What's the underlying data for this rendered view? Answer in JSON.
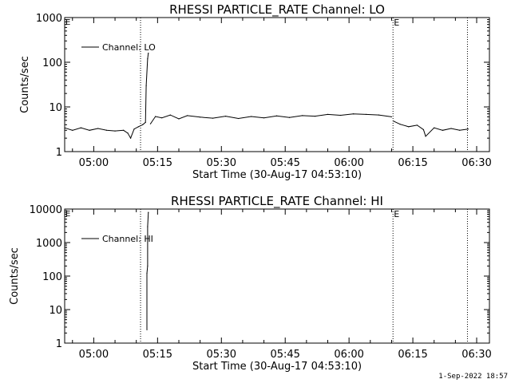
{
  "footer": {
    "timestamp": "1-Sep-2022 18:57"
  },
  "chart_data": [
    {
      "type": "line",
      "title": "RHESSI PARTICLE_RATE Channel: LO",
      "xlabel": "Start Time (30-Aug-17 04:53:10)",
      "ylabel": "Counts/sec",
      "yscale": "log",
      "ylim": [
        1,
        1000
      ],
      "xlim": [
        "04:53:10",
        "06:33:00"
      ],
      "x_ticks": [
        "05:00",
        "05:15",
        "05:30",
        "05:45",
        "06:00",
        "06:15",
        "06:30"
      ],
      "y_ticks": [
        "1",
        "10",
        "100",
        "1000"
      ],
      "legend": {
        "position": "top-left",
        "entries": [
          "Channel: LO"
        ]
      },
      "markers": [
        {
          "time": "05:11:00",
          "label": ""
        },
        {
          "time": "06:10:20",
          "label": "E"
        },
        {
          "time": "06:27:50",
          "label": ""
        }
      ],
      "corner_mark": "E",
      "series": [
        {
          "name": "Channel: LO",
          "segments": [
            {
              "x": [
                "04:53:10",
                "04:55:00",
                "04:57:00",
                "04:59:00",
                "05:01:00",
                "05:03:00",
                "05:05:00",
                "05:07:00",
                "05:08:00",
                "05:08:40",
                "05:09:30",
                "05:10:30",
                "05:11:30",
                "05:12:10",
                "05:12:20",
                "05:12:40",
                "05:12:50"
              ],
              "y": [
                3.4,
                3.0,
                3.4,
                3.0,
                3.3,
                3.0,
                2.9,
                3.0,
                2.6,
                2.0,
                3.2,
                3.6,
                4.0,
                4.5,
                30,
                120,
                160
              ]
            },
            {
              "x": [
                "05:13:20",
                "05:14:30",
                "05:16:00",
                "05:18:00",
                "05:20:00",
                "05:22:00",
                "05:25:00",
                "05:28:00",
                "05:31:00",
                "05:34:00",
                "05:37:00",
                "05:40:00",
                "05:43:00",
                "05:46:00",
                "05:49:00",
                "05:52:00",
                "05:55:00",
                "05:58:00",
                "06:01:00",
                "06:04:00",
                "06:07:00",
                "06:10:00"
              ],
              "y": [
                4.2,
                6.1,
                5.7,
                6.6,
                5.4,
                6.4,
                5.9,
                5.6,
                6.2,
                5.5,
                6.1,
                5.7,
                6.3,
                5.8,
                6.4,
                6.2,
                6.8,
                6.5,
                7.0,
                6.8,
                6.6,
                6.0
              ]
            },
            {
              "x": [
                "06:10:30",
                "06:12:00",
                "06:14:00",
                "06:16:00",
                "06:17:30",
                "06:18:00",
                "06:20:00",
                "06:22:00",
                "06:24:00",
                "06:26:00",
                "06:28:00"
              ],
              "y": [
                4.8,
                4.1,
                3.6,
                3.9,
                3.1,
                2.2,
                3.4,
                3.0,
                3.3,
                3.0,
                3.2
              ]
            }
          ]
        }
      ]
    },
    {
      "type": "line",
      "title": "RHESSI PARTICLE_RATE Channel: HI",
      "xlabel": "Start Time (30-Aug-17 04:53:10)",
      "ylabel": "Counts/sec",
      "yscale": "log",
      "ylim": [
        1,
        10000
      ],
      "xlim": [
        "04:53:10",
        "06:33:00"
      ],
      "x_ticks": [
        "05:00",
        "05:15",
        "05:30",
        "05:45",
        "06:00",
        "06:15",
        "06:30"
      ],
      "y_ticks": [
        "1",
        "10",
        "100",
        "1000",
        "10000"
      ],
      "legend": {
        "position": "top-left",
        "entries": [
          "Channel: HI"
        ]
      },
      "markers": [
        {
          "time": "05:11:00",
          "label": ""
        },
        {
          "time": "06:10:20",
          "label": "E"
        },
        {
          "time": "06:27:50",
          "label": ""
        }
      ],
      "corner_mark": "E",
      "series": [
        {
          "name": "Channel: HI",
          "segments": [
            {
              "x": [
                "05:12:30",
                "05:12:30",
                "05:12:40",
                "05:12:40",
                "05:12:50"
              ],
              "y": [
                2.5,
                120,
                200,
                3000,
                8000
              ]
            }
          ]
        }
      ]
    }
  ]
}
